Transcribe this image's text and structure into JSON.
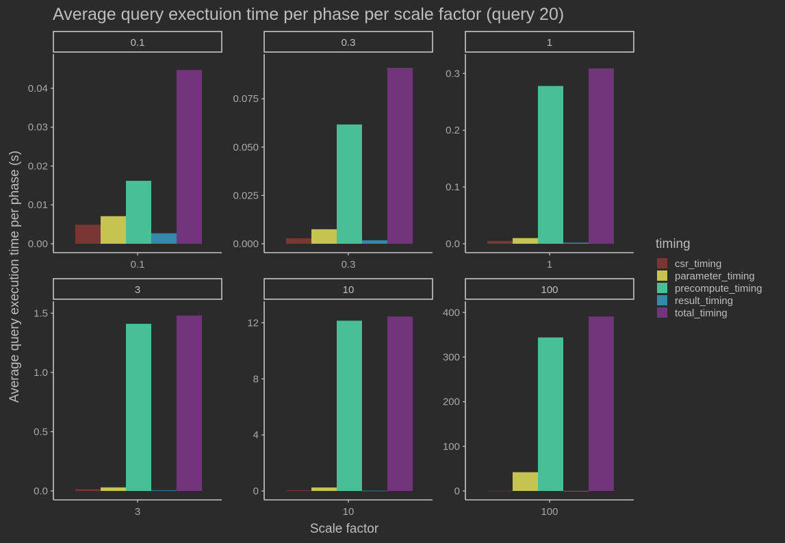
{
  "chart_data": {
    "type": "bar",
    "title": "Average query exectuion time per phase per scale factor (query 20)",
    "xlabel": "Scale factor",
    "ylabel": "Average query execution time per phase (s)",
    "legend": {
      "title": "timing",
      "placement": "right",
      "items": [
        "csr_timing",
        "parameter_timing",
        "precompute_timing",
        "result_timing",
        "total_timing"
      ]
    },
    "colors": {
      "csr_timing": "#7b3631",
      "parameter_timing": "#c5c44f",
      "precompute_timing": "#48bf96",
      "result_timing": "#3688aa",
      "total_timing": "#72347a",
      "background": "#2b2b2b",
      "text": "#bdbdbd",
      "axis": "#c8c8c8"
    },
    "grid": false,
    "facets": [
      {
        "label": "0.1",
        "category": "0.1",
        "ylim": [
          0,
          0.0465
        ],
        "yticks": [
          0,
          0.01,
          0.02,
          0.03,
          0.04
        ],
        "ytick_labels": [
          "0.00",
          "0.01",
          "0.02",
          "0.03",
          "0.04"
        ],
        "values": {
          "csr_timing": 0.0049,
          "parameter_timing": 0.0071,
          "precompute_timing": 0.0162,
          "result_timing": 0.0027,
          "total_timing": 0.0447
        }
      },
      {
        "label": "0.3",
        "category": "0.3",
        "ylim": [
          0,
          0.0935
        ],
        "yticks": [
          0,
          0.025,
          0.05,
          0.075
        ],
        "ytick_labels": [
          "0.000",
          "0.025",
          "0.050",
          "0.075"
        ],
        "values": {
          "csr_timing": 0.0028,
          "parameter_timing": 0.0075,
          "precompute_timing": 0.0617,
          "result_timing": 0.0018,
          "total_timing": 0.091
        }
      },
      {
        "label": "1",
        "category": "1",
        "ylim": [
          0,
          0.3185
        ],
        "yticks": [
          0,
          0.1,
          0.2,
          0.3
        ],
        "ytick_labels": [
          "0.0",
          "0.1",
          "0.2",
          "0.3"
        ],
        "values": {
          "csr_timing": 0.005,
          "parameter_timing": 0.01,
          "precompute_timing": 0.278,
          "result_timing": 0.002,
          "total_timing": 0.309
        }
      },
      {
        "label": "3",
        "category": "3",
        "ylim": [
          0,
          1.525
        ],
        "yticks": [
          0,
          0.5,
          1.0,
          1.5
        ],
        "ytick_labels": [
          "0.0",
          "0.5",
          "1.0",
          "1.5"
        ],
        "values": {
          "csr_timing": 0.015,
          "parameter_timing": 0.03,
          "precompute_timing": 1.41,
          "result_timing": 0.005,
          "total_timing": 1.48
        }
      },
      {
        "label": "10",
        "category": "10",
        "ylim": [
          0,
          12.9
        ],
        "yticks": [
          0,
          4,
          8,
          12
        ],
        "ytick_labels": [
          "0",
          "4",
          "8",
          "12"
        ],
        "values": {
          "csr_timing": 0.05,
          "parameter_timing": 0.25,
          "precompute_timing": 12.15,
          "result_timing": 0.02,
          "total_timing": 12.45
        }
      },
      {
        "label": "100",
        "category": "100",
        "ylim": [
          0,
          405
        ],
        "yticks": [
          0,
          100,
          200,
          300,
          400
        ],
        "ytick_labels": [
          "0",
          "100",
          "200",
          "300",
          "400"
        ],
        "values": {
          "csr_timing": 0.5,
          "parameter_timing": 42,
          "precompute_timing": 344,
          "result_timing": 0.1,
          "total_timing": 391
        }
      }
    ]
  }
}
